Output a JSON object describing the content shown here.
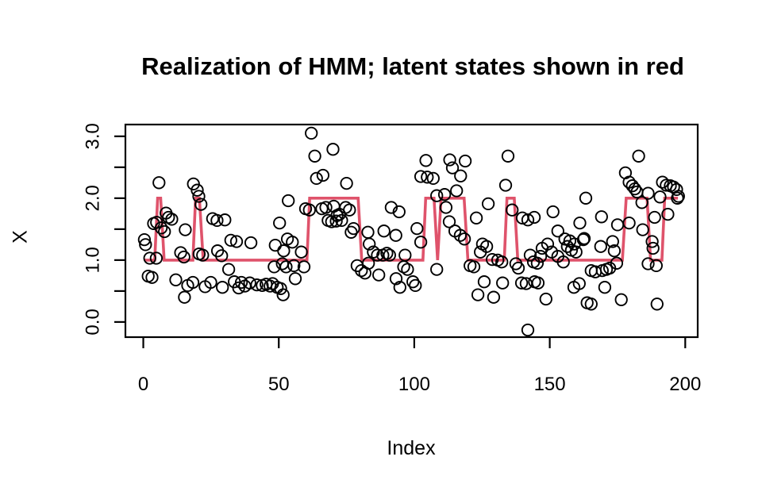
{
  "chart_data": {
    "type": "scatter",
    "title": "Realization of HMM; latent states shown in red",
    "xlabel": "Index",
    "ylabel": "X",
    "xlim": [
      -6.6,
      204.6
    ],
    "ylim": [
      -0.245,
      3.19
    ],
    "grid": false,
    "x_ticks": [
      0,
      50,
      100,
      150,
      200
    ],
    "x_tick_labels": [
      "0",
      "50",
      "100",
      "150",
      "200"
    ],
    "y_ticks_all": [
      0,
      0.5,
      1.0,
      1.5,
      2.0,
      2.5,
      3.0
    ],
    "y_ticks_labeled": [
      0,
      1.0,
      2.0,
      3.0
    ],
    "y_tick_labels": [
      "0.0",
      "1.0",
      "2.0",
      "3.0"
    ],
    "point_color": "#000000",
    "line_color": "#DF536B",
    "series": [
      {
        "name": "latent-states-step-line",
        "type": "line",
        "color": "#DF536B",
        "vertices": [
          [
            0.5,
            1
          ],
          [
            4.2,
            1
          ],
          [
            5.3,
            2
          ],
          [
            6.4,
            2
          ],
          [
            7.7,
            1
          ],
          [
            18.3,
            1
          ],
          [
            19.3,
            2
          ],
          [
            20.7,
            2
          ],
          [
            22.1,
            1
          ],
          [
            60.4,
            1
          ],
          [
            61.4,
            2
          ],
          [
            79.3,
            2
          ],
          [
            80.6,
            1
          ],
          [
            103.2,
            1
          ],
          [
            104.2,
            2
          ],
          [
            107.3,
            2
          ],
          [
            108.6,
            1
          ],
          [
            109.9,
            2
          ],
          [
            118.4,
            2
          ],
          [
            119.8,
            1
          ],
          [
            133.2,
            1
          ],
          [
            134.2,
            2
          ],
          [
            136.9,
            2
          ],
          [
            138.2,
            1
          ],
          [
            176.8,
            1
          ],
          [
            178.2,
            2
          ],
          [
            185.9,
            2
          ],
          [
            187.2,
            1
          ],
          [
            191.4,
            1
          ],
          [
            192.4,
            2
          ],
          [
            197.3,
            2
          ]
        ]
      },
      {
        "name": "observations",
        "type": "scatter",
        "color": "#000000",
        "points": [
          [
            0.4,
            1.33
          ],
          [
            0.8,
            1.25
          ],
          [
            1.8,
            0.74
          ],
          [
            2.4,
            1.03
          ],
          [
            3.2,
            0.72
          ],
          [
            3.8,
            1.59
          ],
          [
            4.8,
            1.03
          ],
          [
            4.9,
            1.61
          ],
          [
            5.8,
            2.25
          ],
          [
            6.6,
            1.52
          ],
          [
            7.8,
            1.46
          ],
          [
            8.4,
            1.76
          ],
          [
            9.3,
            1.69
          ],
          [
            10.5,
            1.66
          ],
          [
            12.0,
            0.68
          ],
          [
            13.8,
            1.12
          ],
          [
            15.0,
            1.05
          ],
          [
            15.2,
            0.4
          ],
          [
            15.5,
            1.49
          ],
          [
            16.4,
            0.59
          ],
          [
            18.3,
            0.64
          ],
          [
            18.5,
            2.23
          ],
          [
            19.9,
            2.13
          ],
          [
            20.5,
            2.03
          ],
          [
            20.6,
            1.1
          ],
          [
            21.3,
            1.9
          ],
          [
            21.9,
            1.08
          ],
          [
            22.8,
            0.57
          ],
          [
            24.9,
            0.64
          ],
          [
            25.6,
            1.67
          ],
          [
            27.2,
            1.64
          ],
          [
            27.4,
            1.15
          ],
          [
            28.9,
            1.07
          ],
          [
            29.2,
            0.56
          ],
          [
            30.1,
            1.65
          ],
          [
            31.5,
            0.85
          ],
          [
            32.3,
            1.32
          ],
          [
            33.6,
            0.65
          ],
          [
            34.4,
            1.3
          ],
          [
            35.2,
            0.55
          ],
          [
            36.2,
            0.64
          ],
          [
            37.5,
            0.58
          ],
          [
            39.3,
            0.63
          ],
          [
            39.7,
            1.28
          ],
          [
            41.9,
            0.6
          ],
          [
            43.9,
            0.59
          ],
          [
            45.3,
            0.61
          ],
          [
            46.8,
            0.58
          ],
          [
            47.7,
            0.62
          ],
          [
            48.3,
            0.89
          ],
          [
            48.7,
            1.24
          ],
          [
            49.4,
            0.56
          ],
          [
            50.3,
            1.6
          ],
          [
            50.7,
            0.54
          ],
          [
            51.3,
            0.94
          ],
          [
            51.6,
            0.44
          ],
          [
            51.8,
            1.15
          ],
          [
            52.7,
            0.89
          ],
          [
            53.2,
            1.34
          ],
          [
            53.5,
            1.96
          ],
          [
            55.0,
            1.29
          ],
          [
            55.6,
            0.91
          ],
          [
            56.1,
            0.7
          ],
          [
            58.3,
            1.13
          ],
          [
            59.3,
            0.89
          ],
          [
            59.9,
            1.83
          ],
          [
            61.3,
            1.81
          ],
          [
            62.0,
            3.05
          ],
          [
            63.3,
            2.68
          ],
          [
            63.9,
            2.32
          ],
          [
            65.9,
            1.83
          ],
          [
            66.3,
            2.37
          ],
          [
            67.4,
            1.85
          ],
          [
            68.2,
            1.64
          ],
          [
            69.5,
            1.62
          ],
          [
            70.0,
            2.79
          ],
          [
            70.3,
            1.87
          ],
          [
            71.2,
            1.63
          ],
          [
            71.5,
            1.72
          ],
          [
            72.4,
            1.74
          ],
          [
            73.2,
            1.64
          ],
          [
            74.7,
            1.85
          ],
          [
            75.0,
            2.24
          ],
          [
            76.1,
            1.81
          ],
          [
            76.7,
            1.45
          ],
          [
            77.6,
            1.51
          ],
          [
            78.9,
            0.91
          ],
          [
            80.5,
            0.83
          ],
          [
            81.8,
            0.79
          ],
          [
            82.9,
            1.45
          ],
          [
            83.1,
            0.95
          ],
          [
            83.4,
            1.26
          ],
          [
            84.9,
            1.13
          ],
          [
            86.4,
            1.08
          ],
          [
            86.9,
            0.76
          ],
          [
            88.4,
            1.08
          ],
          [
            88.8,
            1.47
          ],
          [
            89.9,
            1.11
          ],
          [
            90.9,
            1.08
          ],
          [
            91.5,
            1.85
          ],
          [
            93.2,
            1.4
          ],
          [
            93.3,
            0.7
          ],
          [
            94.4,
            1.78
          ],
          [
            94.7,
            0.56
          ],
          [
            96.1,
            0.89
          ],
          [
            96.6,
            1.08
          ],
          [
            97.5,
            0.85
          ],
          [
            99.5,
            0.65
          ],
          [
            100.4,
            0.59
          ],
          [
            101.0,
            1.51
          ],
          [
            102.4,
            1.29
          ],
          [
            102.4,
            2.35
          ],
          [
            104.3,
            2.61
          ],
          [
            104.8,
            2.34
          ],
          [
            107.0,
            2.32
          ],
          [
            108.3,
            2.04
          ],
          [
            108.3,
            0.85
          ],
          [
            111.2,
            2.06
          ],
          [
            111.7,
            1.85
          ],
          [
            112.9,
            1.62
          ],
          [
            113.1,
            2.62
          ],
          [
            114.1,
            2.49
          ],
          [
            115.0,
            1.47
          ],
          [
            115.6,
            2.12
          ],
          [
            117.0,
            1.4
          ],
          [
            117.1,
            2.36
          ],
          [
            118.5,
            1.34
          ],
          [
            118.8,
            2.6
          ],
          [
            120.6,
            0.91
          ],
          [
            122.0,
            0.89
          ],
          [
            122.9,
            1.68
          ],
          [
            123.5,
            0.44
          ],
          [
            124.4,
            1.13
          ],
          [
            125.2,
            1.26
          ],
          [
            125.8,
            0.65
          ],
          [
            126.7,
            1.22
          ],
          [
            127.3,
            1.91
          ],
          [
            128.8,
            1.01
          ],
          [
            129.3,
            0.4
          ],
          [
            130.8,
            1.0
          ],
          [
            132.3,
            0.97
          ],
          [
            132.6,
            0.63
          ],
          [
            133.7,
            2.21
          ],
          [
            134.6,
            2.68
          ],
          [
            136.1,
            1.81
          ],
          [
            137.5,
            0.94
          ],
          [
            138.4,
            0.87
          ],
          [
            139.6,
            0.63
          ],
          [
            139.9,
            1.68
          ],
          [
            141.3,
            0.62
          ],
          [
            141.9,
            1.65
          ],
          [
            141.9,
            -0.13
          ],
          [
            142.8,
            1.08
          ],
          [
            144.0,
            0.97
          ],
          [
            144.3,
            1.69
          ],
          [
            144.4,
            0.65
          ],
          [
            145.4,
            0.95
          ],
          [
            145.7,
            0.63
          ],
          [
            146.6,
            1.06
          ],
          [
            147.2,
            1.19
          ],
          [
            148.6,
            0.37
          ],
          [
            149.2,
            1.26
          ],
          [
            150.7,
            1.13
          ],
          [
            151.2,
            1.78
          ],
          [
            153.0,
            1.47
          ],
          [
            153.0,
            1.06
          ],
          [
            155.0,
            0.97
          ],
          [
            155.6,
            1.34
          ],
          [
            156.5,
            1.22
          ],
          [
            157.4,
            1.31
          ],
          [
            158.0,
            1.16
          ],
          [
            158.9,
            0.56
          ],
          [
            159.1,
            1.26
          ],
          [
            159.7,
            1.13
          ],
          [
            160.9,
            0.62
          ],
          [
            161.1,
            1.6
          ],
          [
            162.4,
            1.33
          ],
          [
            162.7,
            1.35
          ],
          [
            163.3,
            2.0
          ],
          [
            163.8,
            0.31
          ],
          [
            165.3,
            0.83
          ],
          [
            165.3,
            0.29
          ],
          [
            166.8,
            0.81
          ],
          [
            168.8,
            1.22
          ],
          [
            169.1,
            1.7
          ],
          [
            169.4,
            0.83
          ],
          [
            170.3,
            0.56
          ],
          [
            170.9,
            0.85
          ],
          [
            172.1,
            0.87
          ],
          [
            173.2,
            1.3
          ],
          [
            173.8,
            1.15
          ],
          [
            174.7,
            0.95
          ],
          [
            175.0,
            1.57
          ],
          [
            176.4,
            0.36
          ],
          [
            177.9,
            2.41
          ],
          [
            179.3,
            2.26
          ],
          [
            179.3,
            1.6
          ],
          [
            180.5,
            2.2
          ],
          [
            181.4,
            2.15
          ],
          [
            182.2,
            2.1
          ],
          [
            182.8,
            2.68
          ],
          [
            184.0,
            1.93
          ],
          [
            184.3,
            1.49
          ],
          [
            186.3,
            2.08
          ],
          [
            186.3,
            0.94
          ],
          [
            187.8,
            1.3
          ],
          [
            188.1,
            1.19
          ],
          [
            188.7,
            1.69
          ],
          [
            189.3,
            0.91
          ],
          [
            189.6,
            0.29
          ],
          [
            190.7,
            2.02
          ],
          [
            191.6,
            2.26
          ],
          [
            193.0,
            2.21
          ],
          [
            193.6,
            1.74
          ],
          [
            194.5,
            2.2
          ],
          [
            195.7,
            2.18
          ],
          [
            196.8,
            2.14
          ],
          [
            197.1,
            2.0
          ],
          [
            197.5,
            2.03
          ]
        ]
      }
    ]
  },
  "colors": {
    "background": "#FFFFFF",
    "axis": "#000000",
    "latent_line_red": "#DF536B"
  }
}
